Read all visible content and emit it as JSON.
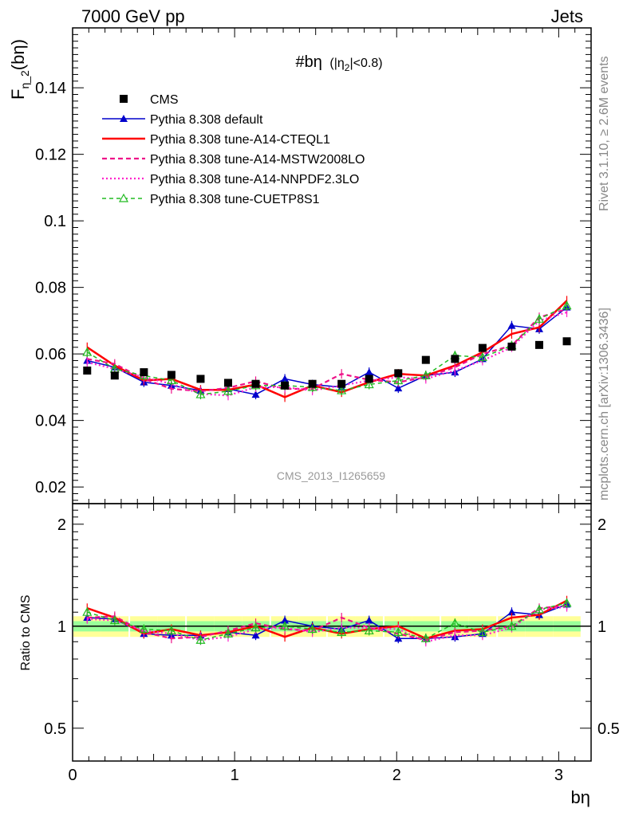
{
  "header": {
    "left": "7000 GeV pp",
    "right": "Jets"
  },
  "plot_title": {
    "main": "#bη",
    "sub": "(|η",
    "sub_index": "2",
    "sub_end": "|<0.8)"
  },
  "ylabel": {
    "base": "F",
    "sub": "η_2",
    "arg": "(bη)"
  },
  "ratio_ylabel": "Ratio to CMS",
  "xlabel": "bη",
  "side_label_top": "Rivet 3.1.10, ≥ 2.6M events",
  "side_label_bottom": "mcplots.cern.ch [arXiv:1306.3436]",
  "analysis_id": "CMS_2013_I1265659",
  "colors": {
    "data": "#000000",
    "default": "#0000cc",
    "cteql1": "#ff0000",
    "mstw": "#ee1188",
    "nnpdf": "#ff22cc",
    "cuetp": "#22bb22",
    "band_inner": "#99ff99",
    "band_outer": "#ffff99"
  },
  "chart_data": {
    "type": "line",
    "x": [
      0.09,
      0.26,
      0.44,
      0.61,
      0.79,
      0.96,
      1.13,
      1.31,
      1.48,
      1.66,
      1.83,
      2.01,
      2.18,
      2.36,
      2.53,
      2.71,
      2.88,
      3.05
    ],
    "xlim": [
      0,
      3.2
    ],
    "ylim": [
      0.015,
      0.158
    ],
    "xticks": [
      "0",
      "1",
      "2",
      "3"
    ],
    "yticks": [
      "0.02",
      "0.04",
      "0.06",
      "0.08",
      "0.1",
      "0.12",
      "0.14"
    ],
    "ratio_ylim": [
      0.4,
      2.3
    ],
    "ratio_yticks": [
      "0.5",
      "1",
      "2"
    ],
    "ratio_log_scale": true,
    "legend_position": "top-left",
    "data": {
      "name": "CMS",
      "values": [
        0.055,
        0.0535,
        0.0545,
        0.0537,
        0.0525,
        0.0513,
        0.051,
        0.0505,
        0.051,
        0.051,
        0.0525,
        0.0542,
        0.0582,
        0.0585,
        0.0618,
        0.0622,
        0.0627,
        0.0638
      ]
    },
    "series": [
      {
        "name": "Pythia 8.308 default",
        "key": "default",
        "values": [
          0.058,
          0.056,
          0.0515,
          0.0505,
          0.049,
          0.0495,
          0.0478,
          0.0525,
          0.0508,
          0.05,
          0.0545,
          0.0497,
          0.0535,
          0.0545,
          0.0585,
          0.0685,
          0.0675,
          0.074
        ],
        "ratio": [
          1.06,
          1.05,
          0.95,
          0.94,
          0.94,
          0.96,
          0.94,
          1.04,
          1.0,
          0.98,
          1.04,
          0.92,
          0.92,
          0.93,
          0.95,
          1.1,
          1.08,
          1.16
        ]
      },
      {
        "name": "Pythia 8.308 tune-A14-CTEQL1",
        "key": "cteql1",
        "values": [
          0.062,
          0.0565,
          0.052,
          0.0525,
          0.0492,
          0.0492,
          0.0508,
          0.047,
          0.0505,
          0.0485,
          0.0515,
          0.054,
          0.0535,
          0.0565,
          0.0605,
          0.066,
          0.068,
          0.076
        ],
        "ratio": [
          1.13,
          1.06,
          0.95,
          0.98,
          0.94,
          0.96,
          1.0,
          0.93,
          0.99,
          0.95,
          0.98,
          1.0,
          0.92,
          0.97,
          0.98,
          1.06,
          1.08,
          1.19
        ]
      },
      {
        "name": "Pythia 8.308 tune-A14-MSTW2008LO",
        "key": "mstw",
        "values": [
          0.0585,
          0.057,
          0.0525,
          0.0495,
          0.0488,
          0.0498,
          0.0518,
          0.0495,
          0.0495,
          0.054,
          0.0522,
          0.0515,
          0.053,
          0.056,
          0.06,
          0.0625,
          0.071,
          0.0735
        ],
        "ratio": [
          1.06,
          1.07,
          0.96,
          0.92,
          0.93,
          0.97,
          1.02,
          0.98,
          0.97,
          1.06,
          0.99,
          0.95,
          0.91,
          0.96,
          0.97,
          1.0,
          1.13,
          1.15
        ]
      },
      {
        "name": "Pythia 8.308 tune-A14-NNPDF2.3LO",
        "key": "nnpdf",
        "values": [
          0.0575,
          0.0555,
          0.053,
          0.051,
          0.048,
          0.0475,
          0.05,
          0.05,
          0.049,
          0.0505,
          0.052,
          0.053,
          0.0525,
          0.055,
          0.058,
          0.062,
          0.07,
          0.0725
        ],
        "ratio": [
          1.05,
          1.04,
          0.97,
          0.95,
          0.91,
          0.93,
          0.98,
          0.99,
          0.96,
          0.99,
          0.99,
          0.98,
          0.9,
          0.94,
          0.94,
          0.99,
          1.12,
          1.14
        ]
      },
      {
        "name": "Pythia 8.308 tune-CUETP8S1",
        "key": "cuetp",
        "values": [
          0.0605,
          0.0555,
          0.0535,
          0.052,
          0.0478,
          0.0488,
          0.0505,
          0.0505,
          0.05,
          0.049,
          0.0508,
          0.052,
          0.0535,
          0.0595,
          0.059,
          0.0625,
          0.0705,
          0.0745
        ],
        "ratio": [
          1.1,
          1.04,
          0.98,
          0.97,
          0.91,
          0.95,
          0.99,
          1.0,
          0.98,
          0.96,
          0.97,
          0.96,
          0.92,
          1.02,
          0.96,
          1.0,
          1.12,
          1.17
        ]
      }
    ]
  }
}
